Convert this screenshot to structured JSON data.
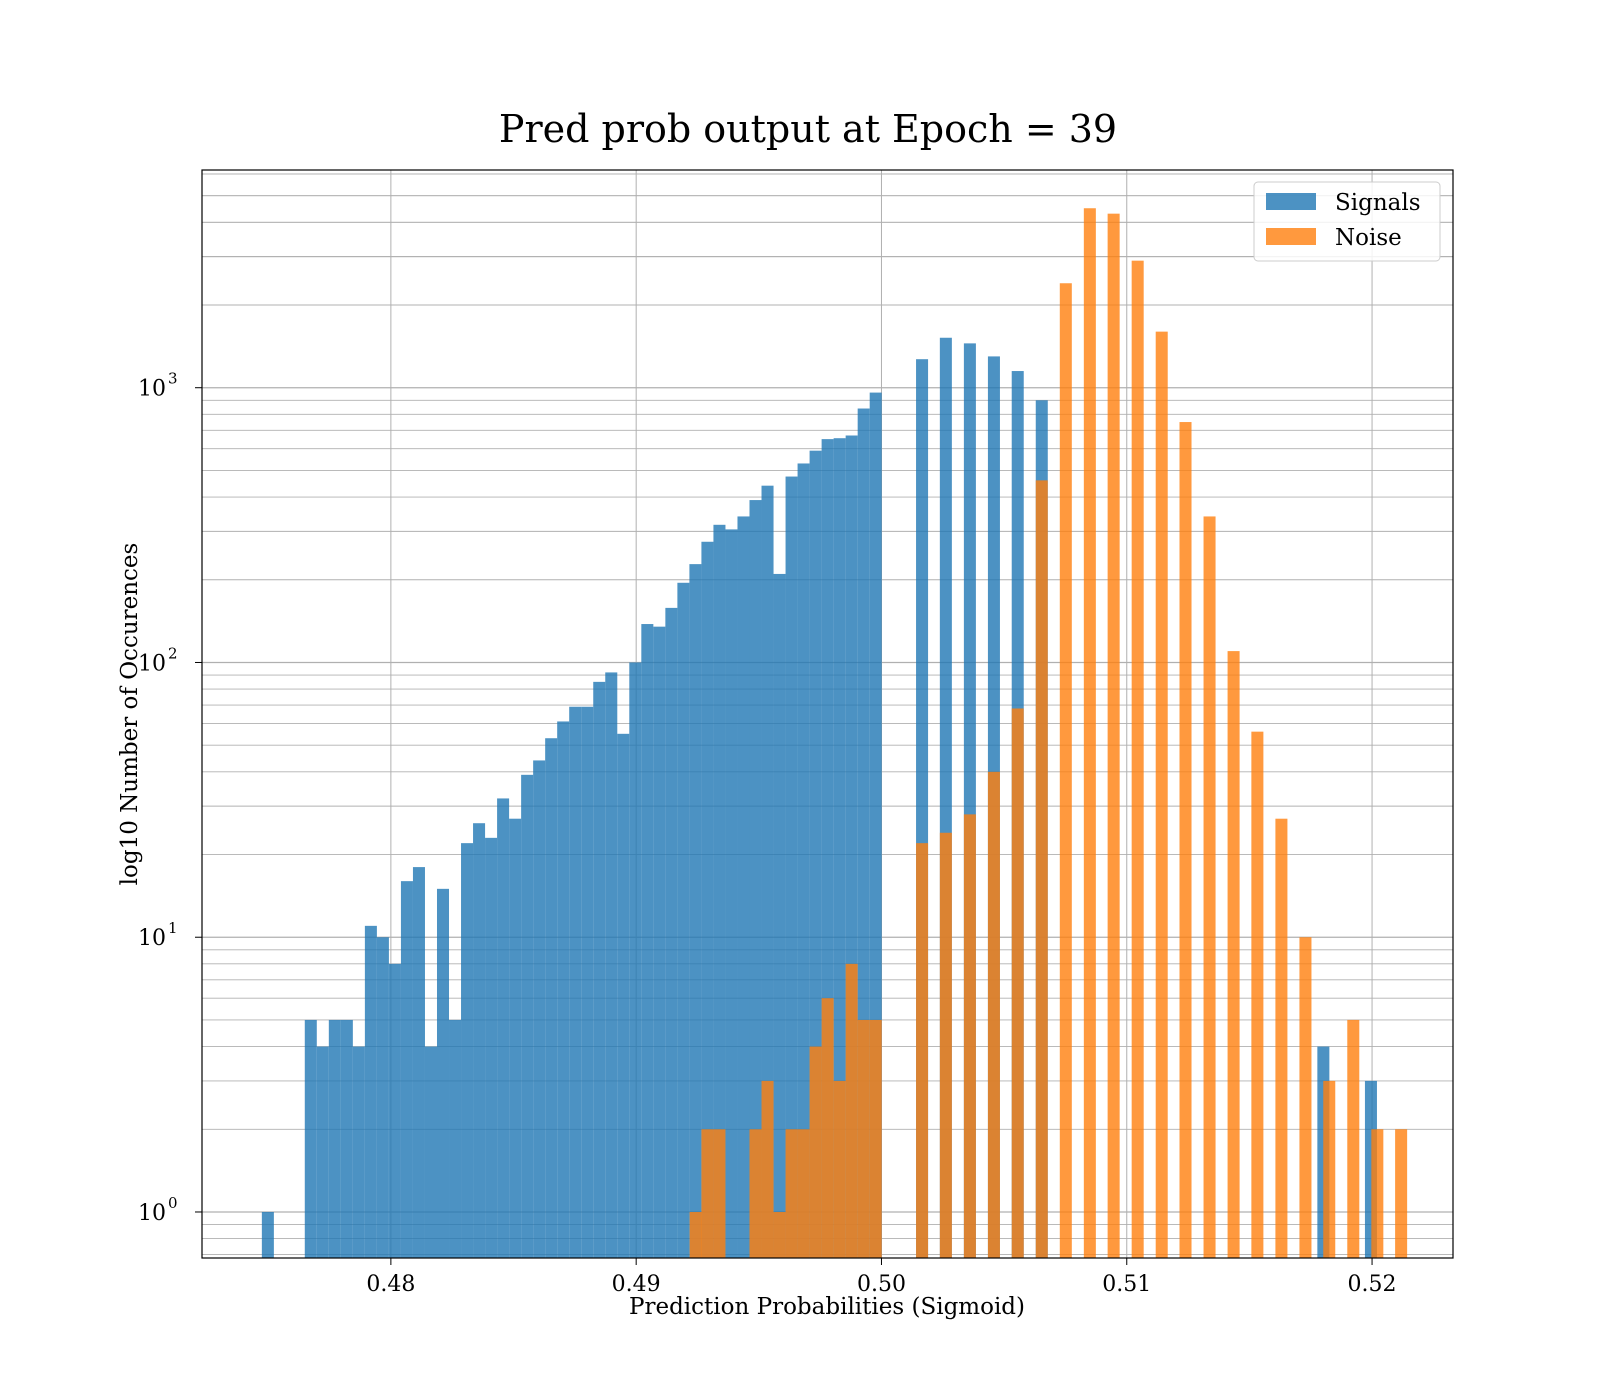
{
  "colors": {
    "signals": "#1f77b4",
    "noise": "#ff7f0e",
    "grid": "#b0b0b0"
  },
  "chart_data": {
    "type": "bar",
    "title": "Pred prob output at Epoch = 39",
    "xlabel": "Prediction Probabilities (Sigmoid)",
    "ylabel": "log10 Number of Occurences",
    "xlim": [
      0.4723,
      0.5233
    ],
    "ylim": [
      0.68,
      6200
    ],
    "yscale": "log",
    "grid": true,
    "legend_placement": "top-right",
    "bin_width": 0.00049,
    "xticks": [
      {
        "value": 0.48,
        "label": "0.48"
      },
      {
        "value": 0.49,
        "label": "0.49"
      },
      {
        "value": 0.5,
        "label": "0.50"
      },
      {
        "value": 0.51,
        "label": "0.51"
      },
      {
        "value": 0.52,
        "label": "0.52"
      }
    ],
    "yticks": [
      {
        "value": 1,
        "base": "10",
        "exp": "0"
      },
      {
        "value": 10,
        "base": "10",
        "exp": "1"
      },
      {
        "value": 100,
        "base": "10",
        "exp": "2"
      },
      {
        "value": 1000,
        "base": "10",
        "exp": "3"
      }
    ],
    "series": [
      {
        "name": "Signals",
        "x": [
          0.47474,
          0.47649,
          0.47698,
          0.47747,
          0.47796,
          0.47845,
          0.47894,
          0.47943,
          0.47992,
          0.48041,
          0.4809,
          0.48139,
          0.48188,
          0.48237,
          0.48286,
          0.48335,
          0.48384,
          0.48433,
          0.48482,
          0.48531,
          0.4858,
          0.48629,
          0.48678,
          0.48727,
          0.48776,
          0.48825,
          0.48874,
          0.48923,
          0.48972,
          0.49021,
          0.4907,
          0.49119,
          0.49168,
          0.49217,
          0.49266,
          0.49315,
          0.49364,
          0.49413,
          0.49462,
          0.49511,
          0.4956,
          0.49609,
          0.49658,
          0.49707,
          0.49756,
          0.49805,
          0.49854,
          0.49903,
          0.49952,
          0.50141,
          0.50238,
          0.50336,
          0.50434,
          0.50531,
          0.50629,
          0.51777,
          0.51971
        ],
        "values": [
          1,
          5,
          4,
          5,
          5,
          4,
          11,
          10,
          8,
          16,
          18,
          4,
          15,
          5,
          22,
          26,
          23,
          32,
          27,
          39,
          44,
          53,
          61,
          69,
          69,
          85,
          92,
          55,
          100,
          138,
          135,
          158,
          195,
          228,
          275,
          317,
          305,
          340,
          390,
          440,
          210,
          475,
          530,
          590,
          650,
          655,
          670,
          840,
          960,
          1270,
          1520,
          1450,
          1300,
          1150,
          900,
          4,
          3
        ]
      },
      {
        "name": "Noise",
        "x": [
          0.49218,
          0.49266,
          0.49315,
          0.49462,
          0.49511,
          0.4956,
          0.49609,
          0.49658,
          0.49707,
          0.49756,
          0.49805,
          0.49854,
          0.49903,
          0.49952,
          0.50141,
          0.50238,
          0.50336,
          0.50434,
          0.50531,
          0.50629,
          0.50727,
          0.50825,
          0.50922,
          0.5102,
          0.51118,
          0.51215,
          0.51313,
          0.51411,
          0.51508,
          0.51606,
          0.51704,
          0.51801,
          0.51899,
          0.51997,
          0.52094
        ],
        "values": [
          1,
          2,
          2,
          2,
          3,
          1,
          2,
          2,
          4,
          6,
          3,
          8,
          5,
          5,
          22,
          24,
          28,
          40,
          68,
          460,
          2400,
          4500,
          4300,
          2900,
          1600,
          750,
          340,
          110,
          56,
          27,
          10,
          3,
          5,
          2,
          2
        ]
      }
    ]
  }
}
